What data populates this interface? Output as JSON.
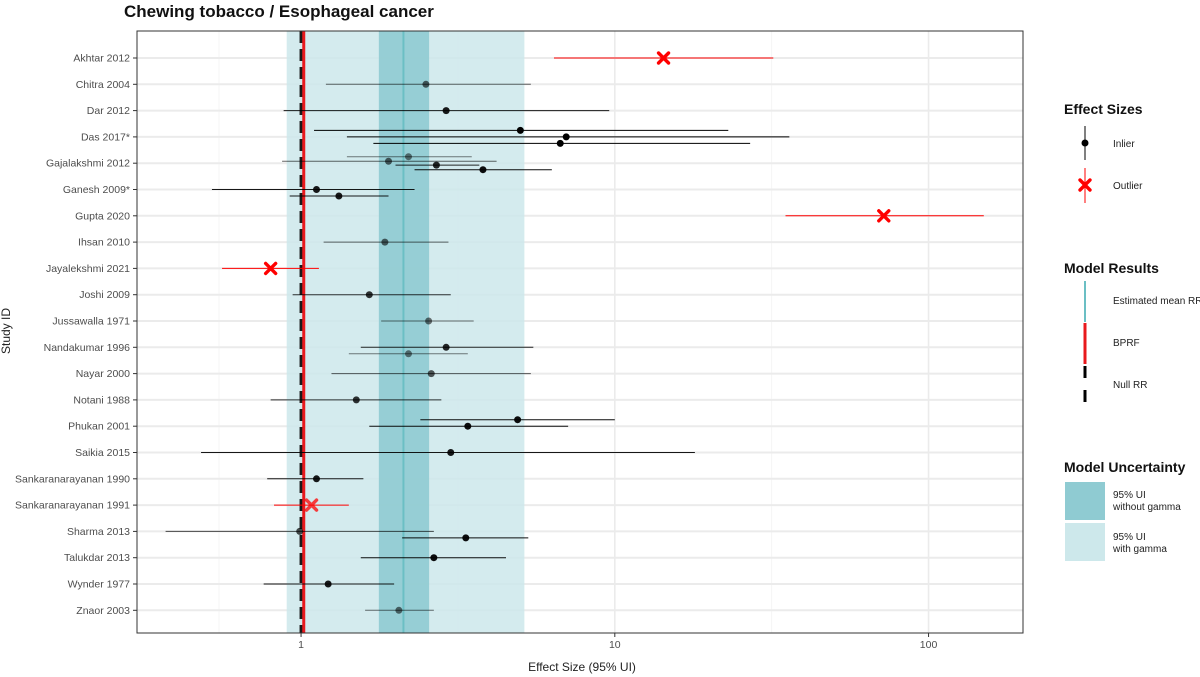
{
  "chart_data": {
    "type": "forest",
    "title": "Chewing tobacco / Esophageal cancer",
    "xlabel": "Effect Size (95% UI)",
    "ylabel": "Study ID",
    "x_scale": "log",
    "xlim": [
      0.3,
      200
    ],
    "x_ticks": [
      1,
      10,
      100
    ],
    "x_tick_labels": [
      "1",
      "10",
      "100"
    ],
    "grid": true,
    "legend_position": "right",
    "colors": {
      "inlier": "#000000",
      "outlier": "#ff0000",
      "mean": "#6bbfc4",
      "bprf": "#e8191d",
      "null": "#1a1a1a",
      "ui_without_gamma": "#8fcbd2",
      "ui_with_gamma": "#cde8eb",
      "grid": "#ebebeb"
    },
    "estimated_mean_rr": 2.12,
    "bprf": 1.02,
    "null_rr": 1,
    "ui_without_gamma": [
      1.77,
      2.56
    ],
    "ui_with_gamma": [
      0.9,
      5.15
    ],
    "studies": [
      "Akhtar 2012",
      "Chitra 2004",
      "Dar 2012",
      "Das 2017*",
      "Gajalakshmi 2012",
      "Ganesh 2009*",
      "Gupta 2020",
      "Ihsan 2010",
      "Jayalekshmi 2021",
      "Joshi 2009",
      "Jussawalla 1971",
      "Nandakumar 1996",
      "Nayar 2000",
      "Notani 1988",
      "Phukan 2001",
      "Saikia 2015",
      "Sankaranarayanan 1990",
      "Sankaranarayanan 1991",
      "Sharma 2013",
      "Talukdar 2013",
      "Wynder 1977",
      "Znaor 2003"
    ],
    "effects": [
      {
        "study": "Akhtar 2012",
        "offset": 0,
        "est": 14.3,
        "lo": 6.4,
        "hi": 32,
        "outlier": true,
        "weight": 1
      },
      {
        "study": "Chitra 2004",
        "offset": 0,
        "est": 2.5,
        "lo": 1.2,
        "hi": 5.4,
        "outlier": false,
        "weight": 0.6
      },
      {
        "study": "Dar 2012",
        "offset": 0,
        "est": 2.9,
        "lo": 0.88,
        "hi": 9.6,
        "outlier": false,
        "weight": 0.9
      },
      {
        "study": "Das 2017*",
        "offset": -0.5,
        "est": 5.0,
        "lo": 1.1,
        "hi": 23,
        "outlier": false,
        "weight": 1
      },
      {
        "study": "Das 2017*",
        "offset": 0,
        "est": 7.0,
        "lo": 1.4,
        "hi": 36,
        "outlier": false,
        "weight": 1
      },
      {
        "study": "Das 2017*",
        "offset": 0.5,
        "est": 6.7,
        "lo": 1.7,
        "hi": 27,
        "outlier": false,
        "weight": 1
      },
      {
        "study": "Gajalakshmi 2012",
        "offset": -0.5,
        "est": 2.2,
        "lo": 1.4,
        "hi": 3.5,
        "outlier": false,
        "weight": 0.5
      },
      {
        "study": "Gajalakshmi 2012",
        "offset": -0.15,
        "est": 1.9,
        "lo": 0.87,
        "hi": 4.2,
        "outlier": false,
        "weight": 0.6
      },
      {
        "study": "Gajalakshmi 2012",
        "offset": 0.15,
        "est": 2.7,
        "lo": 2.0,
        "hi": 3.7,
        "outlier": false,
        "weight": 0.85
      },
      {
        "study": "Gajalakshmi 2012",
        "offset": 0.5,
        "est": 3.8,
        "lo": 2.3,
        "hi": 6.3,
        "outlier": false,
        "weight": 0.95
      },
      {
        "study": "Ganesh 2009*",
        "offset": 0,
        "est": 1.12,
        "lo": 0.52,
        "hi": 2.3,
        "outlier": false,
        "weight": 0.9
      },
      {
        "study": "Ganesh 2009*",
        "offset": 0.5,
        "est": 1.32,
        "lo": 0.92,
        "hi": 1.9,
        "outlier": false,
        "weight": 0.9
      },
      {
        "study": "Gupta 2020",
        "offset": 0,
        "est": 72,
        "lo": 35,
        "hi": 150,
        "outlier": true,
        "weight": 1
      },
      {
        "study": "Ihsan 2010",
        "offset": 0,
        "est": 1.85,
        "lo": 1.18,
        "hi": 2.95,
        "outlier": false,
        "weight": 0.6
      },
      {
        "study": "Jayalekshmi 2021",
        "offset": 0,
        "est": 0.8,
        "lo": 0.56,
        "hi": 1.14,
        "outlier": true,
        "weight": 1
      },
      {
        "study": "Joshi 2009",
        "offset": 0,
        "est": 1.65,
        "lo": 0.94,
        "hi": 3.0,
        "outlier": false,
        "weight": 0.8
      },
      {
        "study": "Jussawalla 1971",
        "offset": 0,
        "est": 2.55,
        "lo": 1.8,
        "hi": 3.55,
        "outlier": false,
        "weight": 0.55
      },
      {
        "study": "Nandakumar 1996",
        "offset": 0,
        "est": 2.9,
        "lo": 1.55,
        "hi": 5.5,
        "outlier": false,
        "weight": 0.85
      },
      {
        "study": "Nandakumar 1996",
        "offset": 0.5,
        "est": 2.2,
        "lo": 1.42,
        "hi": 3.4,
        "outlier": false,
        "weight": 0.5
      },
      {
        "study": "Nayar 2000",
        "offset": 0,
        "est": 2.6,
        "lo": 1.25,
        "hi": 5.4,
        "outlier": false,
        "weight": 0.65
      },
      {
        "study": "Notani 1988",
        "offset": 0,
        "est": 1.5,
        "lo": 0.8,
        "hi": 2.8,
        "outlier": false,
        "weight": 0.8
      },
      {
        "study": "Phukan 2001",
        "offset": -0.5,
        "est": 4.9,
        "lo": 2.4,
        "hi": 10,
        "outlier": false,
        "weight": 0.95
      },
      {
        "study": "Phukan 2001",
        "offset": 0,
        "est": 3.4,
        "lo": 1.65,
        "hi": 7.1,
        "outlier": false,
        "weight": 0.95
      },
      {
        "study": "Saikia 2015",
        "offset": 0,
        "est": 3.0,
        "lo": 0.48,
        "hi": 18,
        "outlier": false,
        "weight": 0.9
      },
      {
        "study": "Sankaranarayanan 1990",
        "offset": 0,
        "est": 1.12,
        "lo": 0.78,
        "hi": 1.58,
        "outlier": false,
        "weight": 0.9
      },
      {
        "study": "Sankaranarayanan 1991",
        "offset": 0,
        "est": 1.08,
        "lo": 0.82,
        "hi": 1.42,
        "outlier": true,
        "weight": 0.75
      },
      {
        "study": "Sharma 2013",
        "offset": 0,
        "est": 0.99,
        "lo": 0.37,
        "hi": 2.65,
        "outlier": false,
        "weight": 0.7
      },
      {
        "study": "Sharma 2013",
        "offset": 0.5,
        "est": 3.35,
        "lo": 2.1,
        "hi": 5.3,
        "outlier": false,
        "weight": 0.95
      },
      {
        "study": "Talukdar 2013",
        "offset": 0,
        "est": 2.65,
        "lo": 1.55,
        "hi": 4.5,
        "outlier": false,
        "weight": 0.95
      },
      {
        "study": "Wynder 1977",
        "offset": 0,
        "est": 1.22,
        "lo": 0.76,
        "hi": 1.98,
        "outlier": false,
        "weight": 0.9
      },
      {
        "study": "Znaor 2003",
        "offset": 0,
        "est": 2.05,
        "lo": 1.6,
        "hi": 2.65,
        "outlier": false,
        "weight": 0.55
      }
    ]
  },
  "legend": {
    "effect_sizes": {
      "title": "Effect Sizes",
      "inlier": "Inlier",
      "outlier": "Outlier"
    },
    "model_results": {
      "title": "Model Results",
      "mean": "Estimated mean RR",
      "bprf": "BPRF",
      "null": "Null RR"
    },
    "model_uncertainty": {
      "title": "Model Uncertainty",
      "without_gamma": [
        "95% UI",
        "without gamma"
      ],
      "with_gamma": [
        "95% UI",
        "with gamma"
      ]
    }
  }
}
